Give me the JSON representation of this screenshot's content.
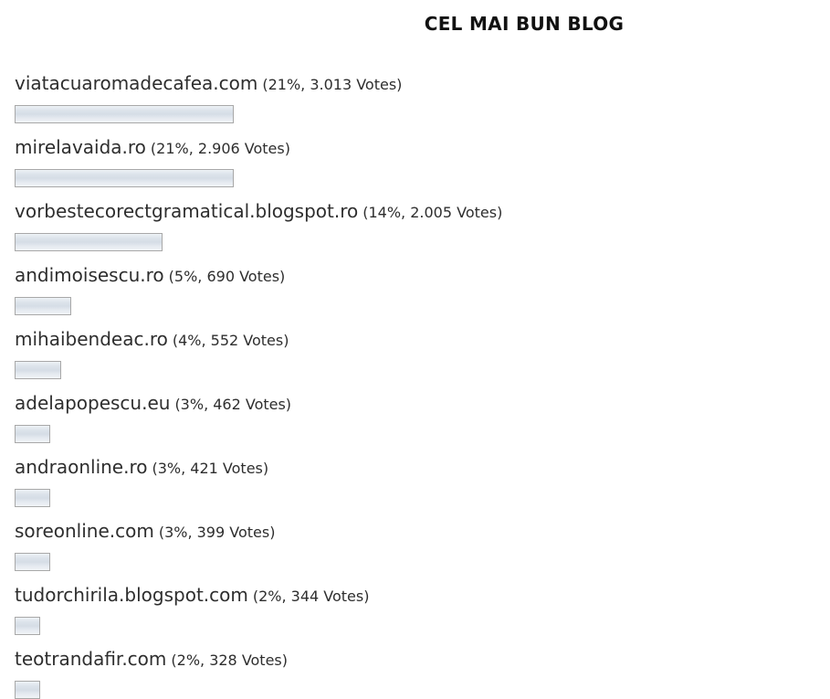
{
  "poll": {
    "title": "CEL MAI BUN BLOG",
    "items": [
      {
        "name": "viatacuaromadecafea.com",
        "detail": "(21%, 3.013 Votes)",
        "percent": 21,
        "votes": 3013
      },
      {
        "name": "mirelavaida.ro",
        "detail": "(21%, 2.906 Votes)",
        "percent": 21,
        "votes": 2906
      },
      {
        "name": "vorbestecorectgramatical.blogspot.ro",
        "detail": "(14%, 2.005 Votes)",
        "percent": 14,
        "votes": 2005
      },
      {
        "name": "andimoisescu.ro",
        "detail": "(5%, 690 Votes)",
        "percent": 5,
        "votes": 690
      },
      {
        "name": "mihaibendeac.ro",
        "detail": "(4%, 552 Votes)",
        "percent": 4,
        "votes": 552
      },
      {
        "name": "adelapopescu.eu",
        "detail": "(3%, 462 Votes)",
        "percent": 3,
        "votes": 462
      },
      {
        "name": "andraonline.ro",
        "detail": "(3%, 421 Votes)",
        "percent": 3,
        "votes": 421
      },
      {
        "name": "soreonline.com",
        "detail": "(3%, 399 Votes)",
        "percent": 3,
        "votes": 399
      },
      {
        "name": "tudorchirila.blogspot.com",
        "detail": "(2%, 344 Votes)",
        "percent": 2,
        "votes": 344
      },
      {
        "name": "teotrandafir.com",
        "detail": "(2%, 328 Votes)",
        "percent": 2,
        "votes": 328
      }
    ]
  },
  "theme": {
    "page_background": "#ffffff",
    "title_color": "#111111",
    "text_color": "#2e2e2e",
    "bar_border": "#a8a8a8",
    "bar_gradient_top": "#eef2f6",
    "bar_gradient_mid": "#d5dde6",
    "bar_gradient_bottom": "#f1f4f7"
  },
  "chart_data": {
    "type": "bar",
    "orientation": "horizontal",
    "title": "CEL MAI BUN BLOG",
    "categories": [
      "viatacuaromadecafea.com",
      "mirelavaida.ro",
      "vorbestecorectgramatical.blogspot.ro",
      "andimoisescu.ro",
      "mihaibendeac.ro",
      "adelapopescu.eu",
      "andraonline.ro",
      "soreonline.com",
      "tudorchirila.blogspot.com",
      "teotrandafir.com"
    ],
    "series": [
      {
        "name": "Percent",
        "values": [
          21,
          21,
          14,
          5,
          4,
          3,
          3,
          3,
          2,
          2
        ]
      },
      {
        "name": "Votes",
        "values": [
          3013,
          2906,
          2005,
          690,
          552,
          462,
          421,
          399,
          344,
          328
        ]
      }
    ],
    "value_suffixes": [
      "%",
      " Votes"
    ],
    "xlabel": "",
    "ylabel": "",
    "grid": false,
    "legend": false,
    "data_labels_inline": true
  }
}
